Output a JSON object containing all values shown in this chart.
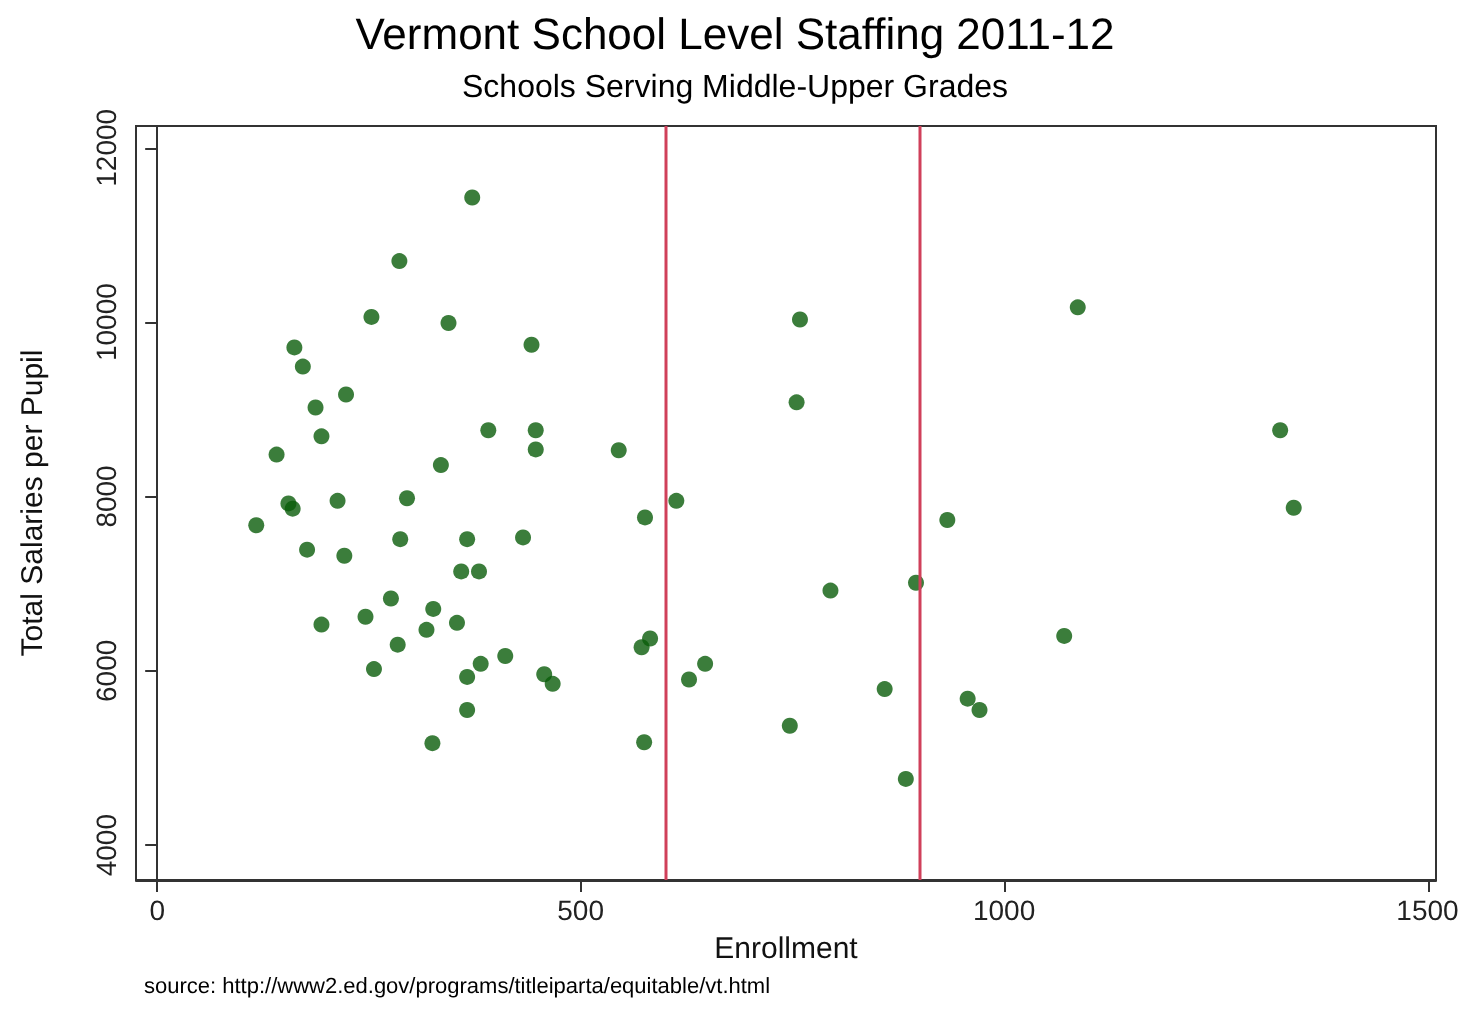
{
  "chart_data": {
    "type": "scatter",
    "title": "Vermont School Level Staffing 2011-12",
    "subtitle": "Schools Serving Middle-Upper Grades",
    "xlabel": "Enrollment",
    "ylabel": "Total Salaries per Pupil",
    "annotations": [
      "source: http://www2.ed.gov/programs/titleiparta/equitable/vt.html"
    ],
    "x": [
      372,
      286,
      253,
      344,
      442,
      162,
      172,
      223,
      187,
      391,
      447,
      194,
      141,
      447,
      545,
      335,
      295,
      213,
      155,
      160,
      117,
      287,
      366,
      432,
      177,
      221,
      359,
      380,
      276,
      326,
      246,
      194,
      354,
      318,
      284,
      411,
      382,
      256,
      366,
      457,
      467,
      366,
      325,
      576,
      613,
      572,
      582,
      575,
      628,
      647,
      759,
      755,
      795,
      896,
      933,
      859,
      747,
      884,
      957,
      971,
      1087,
      1326,
      1342,
      1071
    ],
    "series": [
      {
        "color": "#0a5c0a",
        "values": [
          11430,
          10700,
          10060,
          9990,
          9740,
          9710,
          9490,
          9170,
          9020,
          8760,
          8760,
          8690,
          8480,
          8540,
          8530,
          8360,
          7980,
          7950,
          7920,
          7860,
          7670,
          7510,
          7510,
          7530,
          7390,
          7320,
          7140,
          7140,
          6830,
          6710,
          6620,
          6530,
          6550,
          6470,
          6300,
          6170,
          6080,
          6020,
          5930,
          5960,
          5850,
          5550,
          5170,
          7760,
          7950,
          6270,
          6370,
          5180,
          5900,
          6080,
          10030,
          9080,
          6920,
          7010,
          7730,
          5790,
          5370,
          4760,
          5680,
          5550,
          10170,
          8760,
          7870,
          6400
        ]
      }
    ],
    "xlim": [
      -25,
      1510
    ],
    "xticks": [
      0,
      500,
      1000,
      1500
    ],
    "ylim": [
      3600,
      12250
    ],
    "yticks": [
      4000,
      6000,
      8000,
      10000,
      12000
    ],
    "ref_lines": [
      {
        "axis": "x",
        "value": 600,
        "color": "#d0405a"
      },
      {
        "axis": "x",
        "value": 900,
        "color": "#d0405a"
      }
    ],
    "marker": "circle"
  }
}
